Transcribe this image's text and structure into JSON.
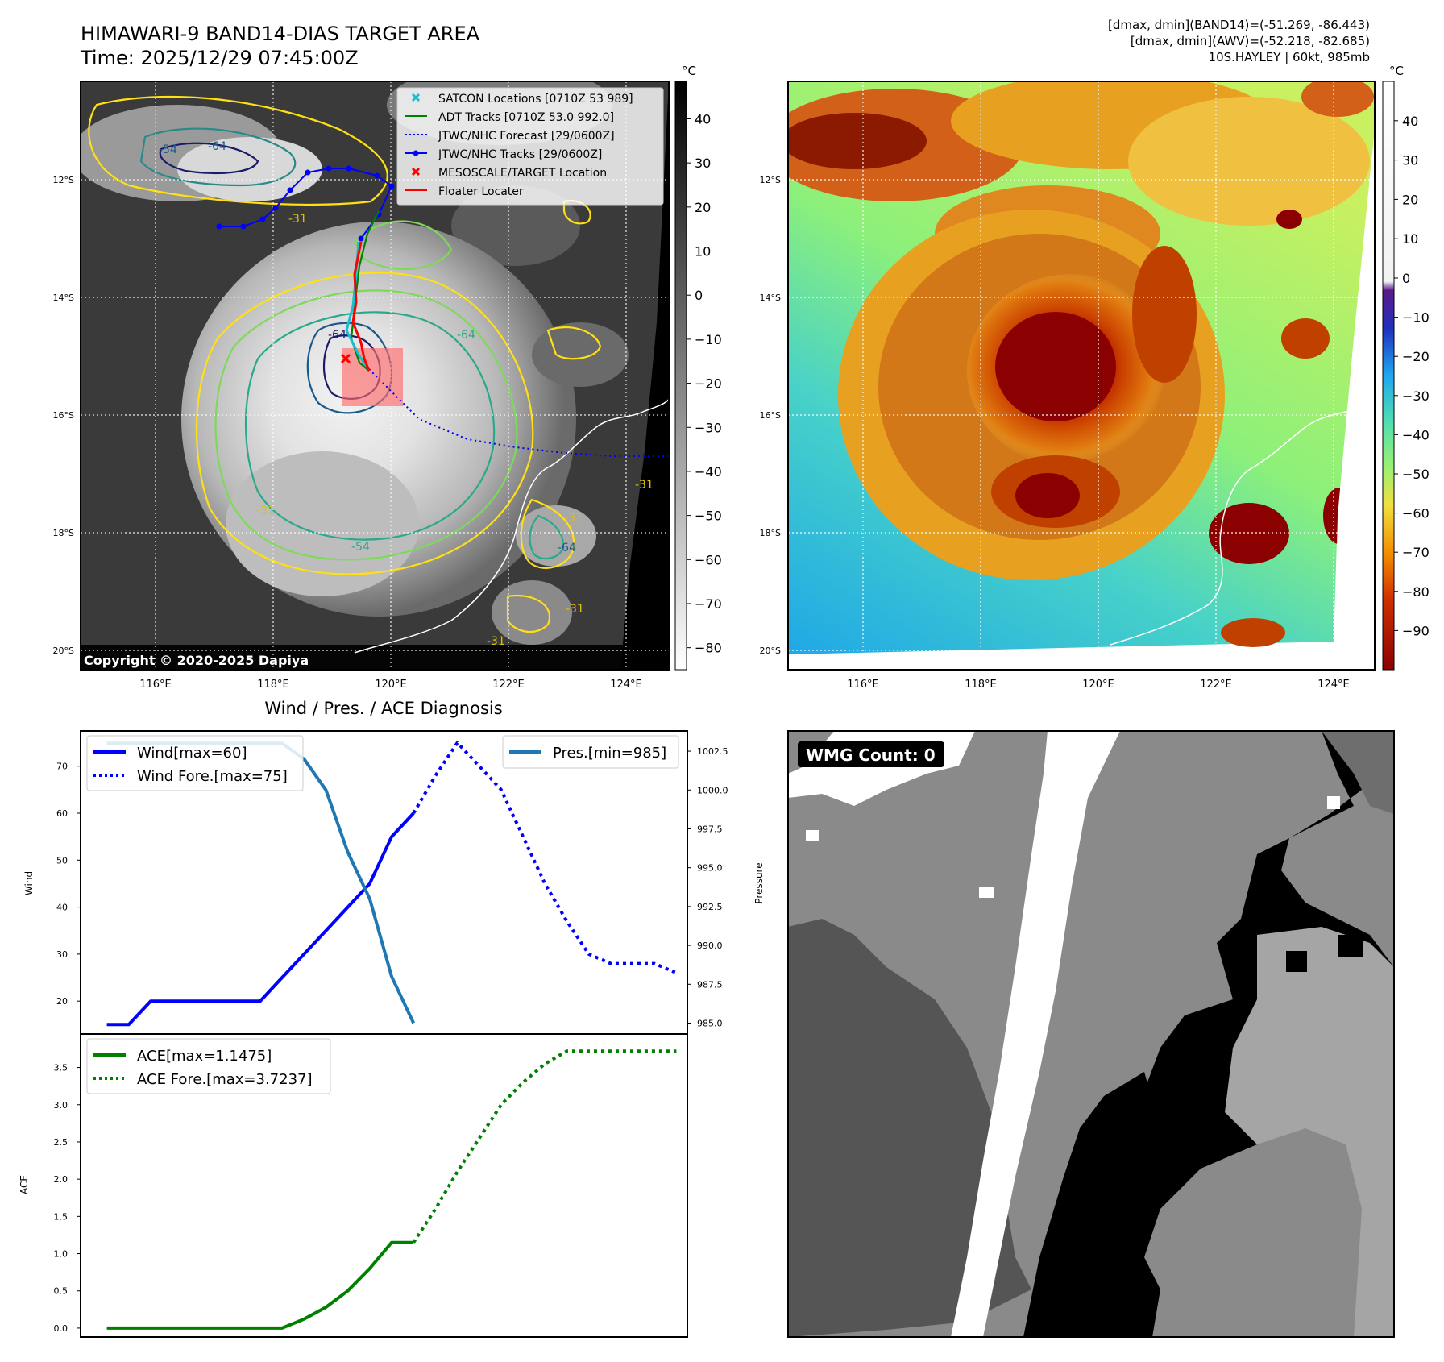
{
  "header": {
    "title": "HIMAWARI-9 BAND14-DIAS TARGET AREA",
    "time": "Time: 2025/12/29 07:45:00Z",
    "stats": [
      "[dmax, dmin](BAND14)=(-51.269, -86.443)",
      "[dmax, dmin](AWV)=(-52.218, -82.685)",
      "10S.HAYLEY | 60kt, 985mb"
    ]
  },
  "map": {
    "lat_labels": [
      "12°S",
      "14°S",
      "16°S",
      "18°S",
      "20°S"
    ],
    "lon_labels": [
      "116°E",
      "118°E",
      "120°E",
      "122°E",
      "124°E"
    ],
    "copyright": "Copyright © 2020-2025 Dapiya",
    "legend": [
      {
        "label": "SATCON Locations [0710Z 53 989]",
        "color": "#17becf",
        "marker": "x"
      },
      {
        "label": "ADT Tracks [0710Z 53.0 992.0]",
        "color": "#008000",
        "marker": "line"
      },
      {
        "label": "JTWC/NHC Forecast [29/0600Z]",
        "color": "#0000ff",
        "marker": "dotted"
      },
      {
        "label": "JTWC/NHC Tracks [29/0600Z]",
        "color": "#0000ff",
        "marker": "line-dot"
      },
      {
        "label": "MESOSCALE/TARGET Location",
        "color": "#ff0000",
        "marker": "x"
      },
      {
        "label": "Floater Locater",
        "color": "#ff0000",
        "marker": "line"
      }
    ],
    "contour_labels": [
      "-54",
      "-64",
      "-31",
      "-64",
      "-31",
      "-64",
      "-54",
      "-31",
      "-31",
      "-64",
      "-31",
      "-31"
    ]
  },
  "colorbar_gray": {
    "unit": "°C",
    "ticks": [
      "40",
      "30",
      "20",
      "10",
      "0",
      "−10",
      "−20",
      "−30",
      "−40",
      "−50",
      "−60",
      "−70",
      "−80"
    ]
  },
  "colorbar_color": {
    "unit": "°C",
    "ticks": [
      "40",
      "30",
      "20",
      "10",
      "0",
      "−10",
      "−20",
      "−30",
      "−40",
      "−50",
      "−60",
      "−70",
      "−80",
      "−90"
    ]
  },
  "wmg": {
    "label": "WMG Count: 0"
  },
  "chart_data": [
    {
      "type": "line",
      "title": "Wind / Pres. / ACE Diagnosis",
      "ylabel": "Wind",
      "y2label": "Pressure",
      "ylim": [
        13,
        77.5
      ],
      "y2lim": [
        984.3,
        1003.8
      ],
      "yticks": [
        "20",
        "30",
        "40",
        "50",
        "60",
        "70"
      ],
      "y2ticks": [
        "985.0",
        "987.5",
        "990.0",
        "992.5",
        "995.0",
        "997.5",
        "1000.0",
        "1002.5"
      ],
      "xlim": [
        -1.2,
        26.5
      ],
      "series": [
        {
          "name": "Wind[max=60]",
          "axis": "left",
          "color": "#0000ff",
          "style": "solid",
          "x": [
            0,
            1,
            2,
            3,
            4,
            5,
            6,
            7,
            8,
            9,
            10,
            11,
            12,
            13,
            14
          ],
          "y": [
            15,
            15,
            20,
            20,
            20,
            20,
            20,
            20,
            25,
            30,
            35,
            40,
            45,
            55,
            60
          ]
        },
        {
          "name": "Wind Fore.[max=75]",
          "axis": "left",
          "color": "#0000ff",
          "style": "dotted",
          "x": [
            14,
            15,
            16,
            17,
            18,
            19,
            20,
            21,
            22,
            23,
            24,
            25,
            26
          ],
          "y": [
            60,
            68,
            75,
            70,
            65,
            55,
            45,
            37,
            30,
            28,
            28,
            28,
            26
          ]
        },
        {
          "name": "Pres.[min=985]",
          "axis": "right",
          "color": "#1f77b4",
          "style": "solid",
          "x": [
            0,
            1,
            2,
            3,
            4,
            5,
            6,
            7,
            8,
            9,
            10,
            11,
            12,
            13,
            14
          ],
          "y": [
            1003,
            1003,
            1003,
            1003,
            1003,
            1003,
            1003,
            1003,
            1003,
            1002,
            1000,
            996,
            993,
            988,
            985
          ]
        }
      ]
    },
    {
      "type": "line",
      "ylabel": "ACE",
      "ylim": [
        -0.12,
        3.95
      ],
      "yticks": [
        "0.0",
        "0.5",
        "1.0",
        "1.5",
        "2.0",
        "2.5",
        "3.0",
        "3.5"
      ],
      "xlim": [
        -1.2,
        26.5
      ],
      "series": [
        {
          "name": "ACE[max=1.1475]",
          "color": "#008000",
          "style": "solid",
          "x": [
            0,
            1,
            2,
            3,
            4,
            5,
            6,
            7,
            8,
            9,
            10,
            11,
            12,
            13,
            14
          ],
          "y": [
            0,
            0,
            0,
            0,
            0,
            0,
            0,
            0,
            0,
            0.12,
            0.28,
            0.5,
            0.8,
            1.15,
            1.15
          ]
        },
        {
          "name": "ACE Fore.[max=3.7237]",
          "color": "#008000",
          "style": "dotted",
          "x": [
            14,
            15,
            16,
            17,
            18,
            19,
            20,
            21,
            22,
            23,
            24,
            25,
            26
          ],
          "y": [
            1.15,
            1.6,
            2.1,
            2.55,
            3.0,
            3.3,
            3.55,
            3.72,
            3.72,
            3.72,
            3.72,
            3.72,
            3.72
          ]
        }
      ]
    }
  ]
}
